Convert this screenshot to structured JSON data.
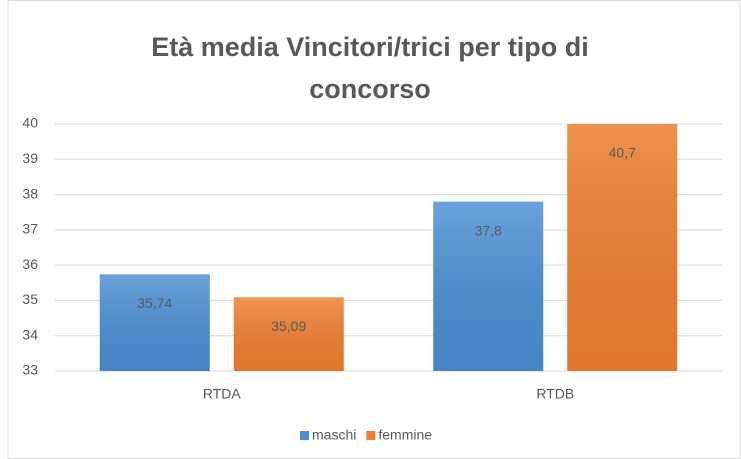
{
  "chart_data": {
    "type": "bar",
    "title": "Età media Vincitori/trici per tipo di concorso",
    "categories": [
      "RTDA",
      "RTDB"
    ],
    "series": [
      {
        "name": "maschi",
        "color": "#4a8fd4",
        "values": [
          35.74,
          37.8
        ],
        "value_labels": [
          "35,74",
          "37,8"
        ]
      },
      {
        "name": "femmine",
        "color": "#f07f2f",
        "values": [
          35.09,
          40.7
        ],
        "value_labels": [
          "35,09",
          "40,7"
        ]
      }
    ],
    "ylim": [
      33,
      40
    ],
    "yticks": [
      33,
      34,
      35,
      36,
      37,
      38,
      39,
      40
    ],
    "grid": true,
    "legend": "bottom"
  }
}
